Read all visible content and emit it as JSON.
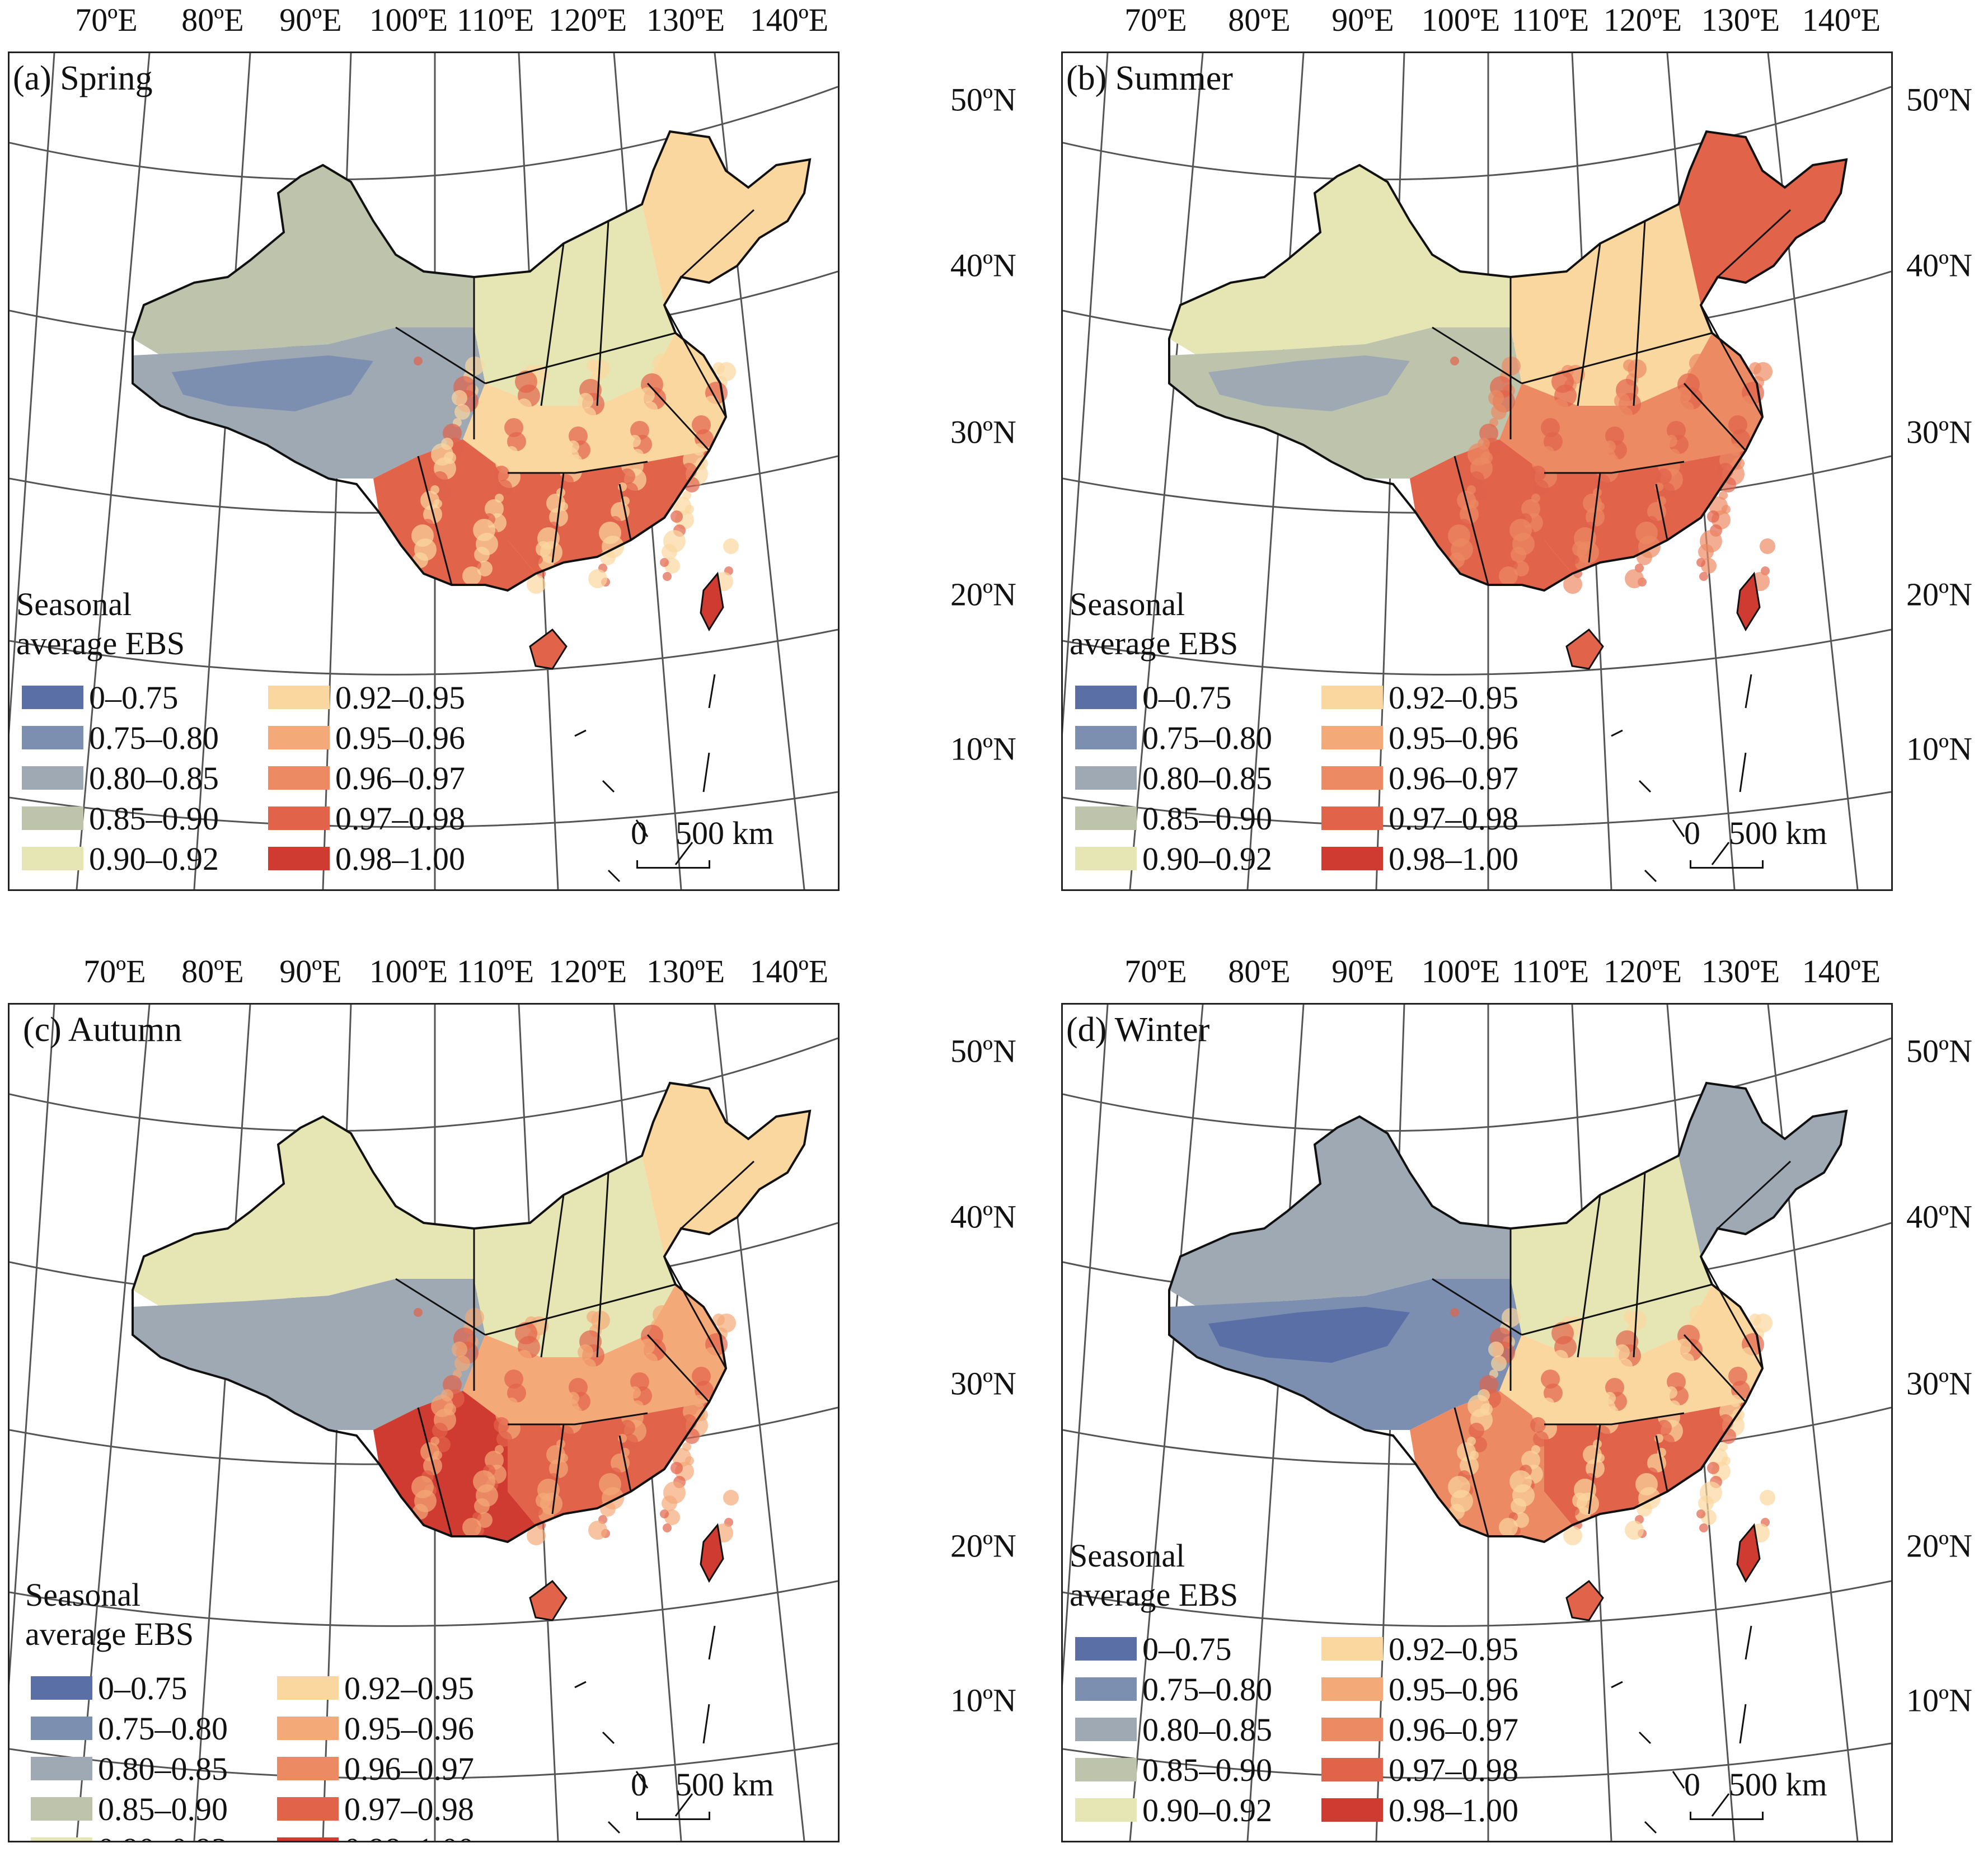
{
  "longitude_labels": [
    "70ºE",
    "80ºE",
    "90ºE",
    "100ºE",
    "110ºE",
    "120ºE",
    "130ºE",
    "140ºE"
  ],
  "latitude_labels": [
    "50ºN",
    "40ºN",
    "30ºN",
    "20ºN",
    "10ºN"
  ],
  "legend": {
    "title_line1": "Seasonal",
    "title_line2": "average EBS",
    "classes": [
      {
        "label": "0–0.75",
        "color": "#5a6fa6"
      },
      {
        "label": "0.75–0.80",
        "color": "#7d8fb0"
      },
      {
        "label": "0.80–0.85",
        "color": "#9fa9b4"
      },
      {
        "label": "0.85–0.90",
        "color": "#bec4ac"
      },
      {
        "label": "0.90–0.92",
        "color": "#e6e6b4"
      },
      {
        "label": "0.92–0.95",
        "color": "#fbd7a0"
      },
      {
        "label": "0.95–0.96",
        "color": "#f3a978"
      },
      {
        "label": "0.96–0.97",
        "color": "#ec8a64"
      },
      {
        "label": "0.97–0.98",
        "color": "#e1634a"
      },
      {
        "label": "0.98–1.00",
        "color": "#cf3b30"
      }
    ]
  },
  "scale_bar": {
    "zero": "0",
    "distance": "500 km"
  },
  "panels": [
    {
      "title": "(a) Spring",
      "northwest": "#bec4ac",
      "tibet": "#9fa9b4",
      "tibet_core": "#7d8fb0",
      "northeast": "#fbd7a0",
      "northplain": "#e6e6b4",
      "central": "#fbd7a0",
      "south": "#e1634a",
      "southwest": "#e1634a",
      "taiwan": "#cf3b30"
    },
    {
      "title": "(b) Summer",
      "northwest": "#e6e6b4",
      "tibet": "#bec4ac",
      "tibet_core": "#9fa9b4",
      "northeast": "#e1634a",
      "northplain": "#fbd7a0",
      "central": "#ec8a64",
      "south": "#e1634a",
      "southwest": "#e1634a",
      "taiwan": "#cf3b30"
    },
    {
      "title": "(c) Autumn",
      "northwest": "#e6e6b4",
      "tibet": "#9fa9b4",
      "tibet_core": "#9fa9b4",
      "northeast": "#fbd7a0",
      "northplain": "#e6e6b4",
      "central": "#f3a978",
      "south": "#e1634a",
      "southwest": "#cf3b30",
      "taiwan": "#cf3b30"
    },
    {
      "title": "(d) Winter",
      "northwest": "#9fa9b4",
      "tibet": "#7d8fb0",
      "tibet_core": "#5a6fa6",
      "northeast": "#9fa9b4",
      "northplain": "#e6e6b4",
      "central": "#fbd7a0",
      "south": "#e1634a",
      "southwest": "#ec8a64",
      "taiwan": "#cf3b30"
    }
  ]
}
